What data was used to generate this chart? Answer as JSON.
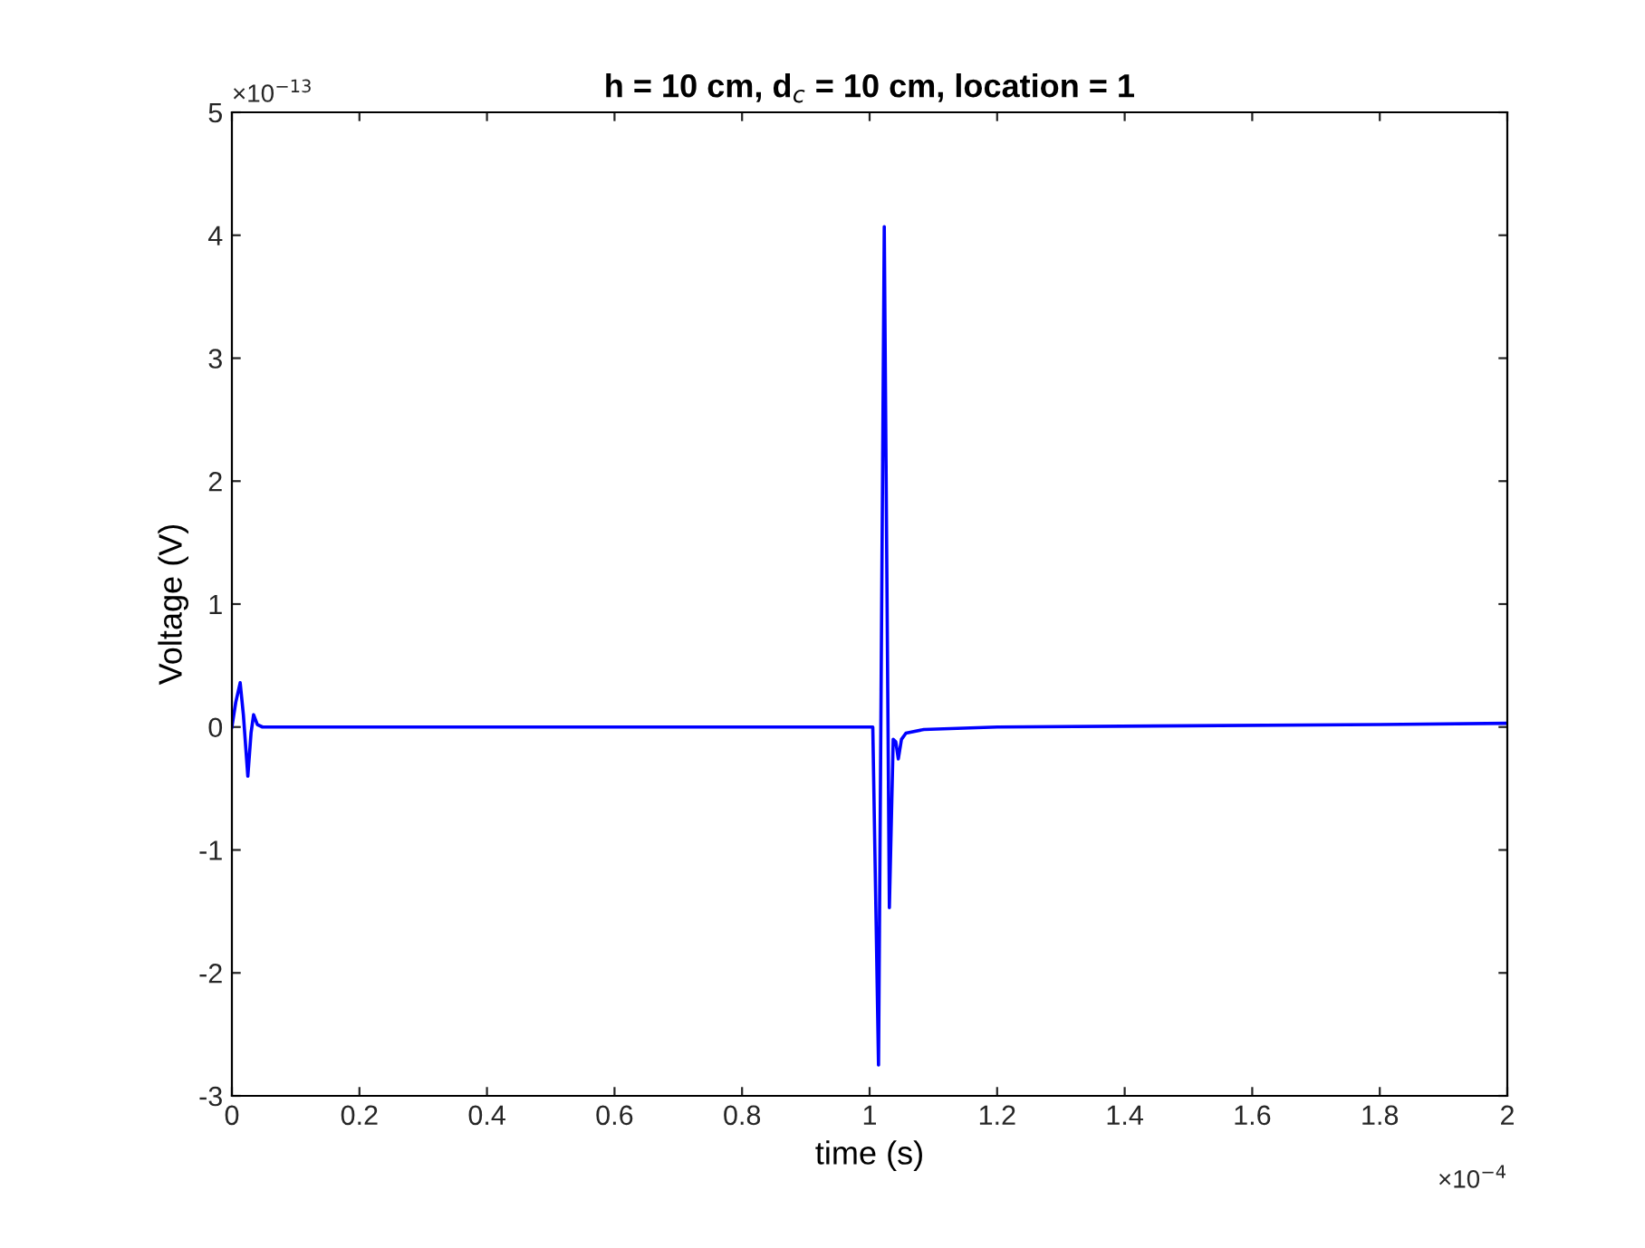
{
  "chart_data": {
    "type": "line",
    "title": "h = 10 cm, d$_{c}$ = 10 cm, location = 1",
    "xlabel": "time (s)",
    "ylabel": "Voltage (V)",
    "annotations": [
      "×10$^{−13}$",
      "×10$^{−4}$"
    ],
    "x": [
      0,
      0.006,
      0.013,
      0.018,
      0.025,
      0.03,
      0.034,
      0.04,
      0.048,
      0.2,
      0.5,
      0.8,
      1.0,
      1.005,
      1.014,
      1.023,
      1.031,
      1.037,
      1.041,
      1.045,
      1.05,
      1.057,
      1.085,
      1.2,
      1.5,
      1.8,
      2.0
    ],
    "series": [
      {
        "color": "#0000ff",
        "values": [
          0,
          0.2,
          0.36,
          0.1,
          -0.4,
          -0.05,
          0.1,
          0.02,
          0,
          0,
          0,
          0,
          0,
          0,
          -2.75,
          4.07,
          -1.47,
          -0.1,
          -0.12,
          -0.26,
          -0.1,
          -0.05,
          -0.02,
          0,
          0.01,
          0.02,
          0.03
        ]
      }
    ],
    "xlim": [
      0,
      2
    ],
    "ylim": [
      -3,
      5
    ],
    "xticks": [
      0,
      0.2,
      0.4,
      0.6,
      0.8,
      1,
      1.2,
      1.4,
      1.6,
      1.8,
      2
    ],
    "yticks": [
      -3,
      -2,
      -1,
      0,
      1,
      2,
      3,
      4,
      5
    ],
    "grid": false,
    "legend": false,
    "marker": "none",
    "line_style": "solid"
  }
}
